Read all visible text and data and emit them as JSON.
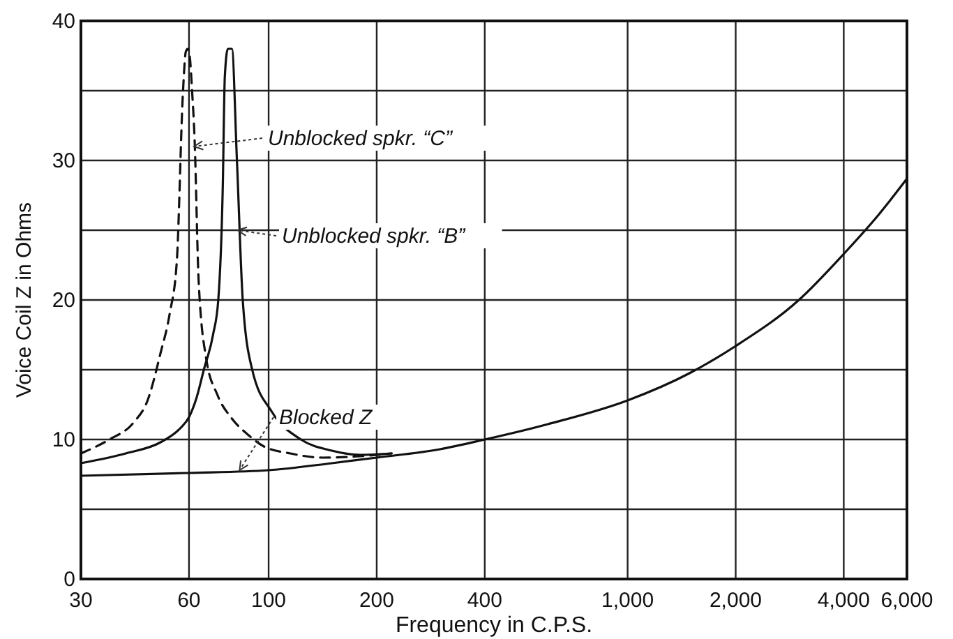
{
  "chart_data": {
    "type": "line",
    "xlabel": "Frequency in C.P.S.",
    "ylabel": "Voice Coil Z in Ohms",
    "log": "x",
    "grid": true,
    "xlim": [
      30,
      6000
    ],
    "ylim": [
      0,
      40
    ],
    "xticks": [
      30,
      60,
      100,
      200,
      400,
      {
        "value": 1000,
        "label": "1,000"
      },
      {
        "value": 2000,
        "label": "2,000"
      },
      {
        "value": 4000,
        "label": "4,000"
      },
      {
        "value": 6000,
        "label": "6,000"
      }
    ],
    "yticks": [
      0,
      {
        "value": 5,
        "label": null
      },
      10,
      {
        "value": 15,
        "label": null
      },
      20,
      {
        "value": 25,
        "label": null
      },
      30,
      {
        "value": 35,
        "label": null
      },
      40
    ],
    "series": [
      {
        "color": "#111111",
        "line_style": "dashed",
        "x": [
          30,
          36,
          42,
          46,
          50,
          53,
          55.5,
          57.7,
          58.8,
          59.5,
          60.2,
          61.2,
          62.2,
          63.8,
          67,
          72,
          79,
          88,
          97,
          115,
          141,
          180,
          220
        ],
        "values": [
          9.0,
          10.0,
          11.2,
          12.8,
          16.2,
          19,
          22.8,
          34.8,
          37.8,
          38,
          37.6,
          35,
          31.5,
          21.5,
          15.8,
          13.2,
          11.5,
          10.3,
          9.5,
          9.0,
          8.7,
          8.8,
          9.0
        ]
      },
      {
        "color": "#111111",
        "line_style": "solid",
        "x": [
          30,
          40,
          50,
          56.7,
          60,
          63,
          66,
          70,
          72.4,
          74.5,
          75.5,
          77,
          79,
          81.6,
          84.7,
          90,
          102,
          123,
          150,
          180,
          220
        ],
        "values": [
          8.3,
          9.0,
          9.8,
          10.8,
          11.6,
          13,
          15,
          17.5,
          20,
          28,
          36,
          38,
          38,
          30,
          20,
          15,
          12,
          10,
          9.2,
          8.9,
          9.0
        ]
      },
      {
        "color": "#111111",
        "line_style": "solid",
        "x": [
          30,
          60,
          100,
          150,
          200,
          300,
          400,
          600,
          1000,
          1500,
          2000,
          3000,
          4000,
          5000,
          6000
        ],
        "values": [
          7.4,
          7.6,
          7.8,
          8.3,
          8.7,
          9.3,
          10.0,
          11.1,
          12.8,
          14.8,
          16.7,
          20.0,
          23.3,
          26.1,
          28.7
        ]
      }
    ],
    "annotations": [
      {
        "text": "Unblocked spkr. “C”",
        "x": 62,
        "y": 31
      },
      {
        "text": "Unblocked spkr. “B”",
        "x": 82,
        "y": 25
      },
      {
        "text": "Blocked Z",
        "x": 83,
        "y": 7.8
      }
    ]
  }
}
